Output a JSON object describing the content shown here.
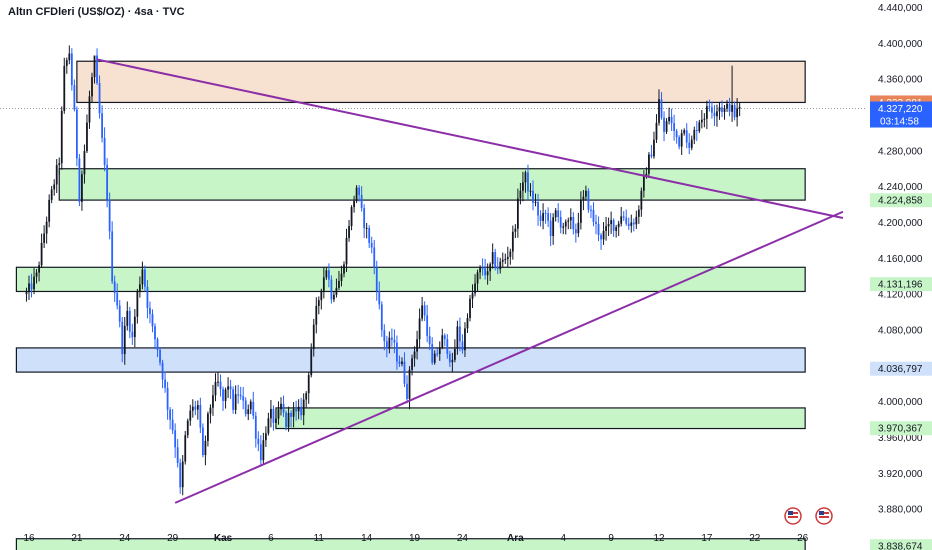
{
  "header": {
    "title": "Altın CFDleri (US$/OZ) · 4sa · TVC"
  },
  "chart_data": {
    "type": "candlestick",
    "title": "Altın CFDleri (US$/OZ) · 4sa · TVC",
    "ylim": [
      3840,
      4445
    ],
    "y_ticks": [
      {
        "v": 4440,
        "label": "4.440,000"
      },
      {
        "v": 4400,
        "label": "4.400,000"
      },
      {
        "v": 4360,
        "label": "4.360,000"
      },
      {
        "v": 4280,
        "label": "4.280,000"
      },
      {
        "v": 4240,
        "label": "4.240,000"
      },
      {
        "v": 4200,
        "label": "4.200,000"
      },
      {
        "v": 4160,
        "label": "4.160,000"
      },
      {
        "v": 4120,
        "label": "4.120,000"
      },
      {
        "v": 4080,
        "label": "4.080,000"
      },
      {
        "v": 4000,
        "label": "4.000,000"
      },
      {
        "v": 3960,
        "label": "3.960,000"
      },
      {
        "v": 3920,
        "label": "3.920,000"
      },
      {
        "v": 3880,
        "label": "3.880,000"
      }
    ],
    "x_ticks": [
      {
        "i": 0,
        "label": "16",
        "bold": false
      },
      {
        "i": 19,
        "label": "21",
        "bold": false
      },
      {
        "i": 38,
        "label": "24",
        "bold": false
      },
      {
        "i": 57,
        "label": "29",
        "bold": false
      },
      {
        "i": 77,
        "label": "Kas",
        "bold": true
      },
      {
        "i": 96,
        "label": "6",
        "bold": false
      },
      {
        "i": 115,
        "label": "11",
        "bold": false
      },
      {
        "i": 134,
        "label": "14",
        "bold": false
      },
      {
        "i": 153,
        "label": "19",
        "bold": false
      },
      {
        "i": 172,
        "label": "24",
        "bold": false
      },
      {
        "i": 193,
        "label": "Ara",
        "bold": true
      },
      {
        "i": 212,
        "label": "4",
        "bold": false
      },
      {
        "i": 231,
        "label": "9",
        "bold": false
      },
      {
        "i": 250,
        "label": "12",
        "bold": false
      },
      {
        "i": 269,
        "label": "17",
        "bold": false
      },
      {
        "i": 288,
        "label": "22",
        "bold": false
      },
      {
        "i": 307,
        "label": "26",
        "bold": false
      }
    ],
    "price_labels": [
      {
        "v": 4333.981,
        "label": "4.333,981",
        "bg": "#e8845a",
        "color": "#ffffff"
      },
      {
        "v": 4327.22,
        "label": "4.327,220",
        "sub": "03:14:58",
        "bg": "#2962ff",
        "color": "#ffffff"
      },
      {
        "v": 4224.858,
        "label": "4.224,858",
        "bg": "#c8f5c8",
        "color": "#131722"
      },
      {
        "v": 4131.196,
        "label": "4.131,196",
        "bg": "#c8f5c8",
        "color": "#131722"
      },
      {
        "v": 4036.797,
        "label": "4.036,797",
        "bg": "#cfe0fb",
        "color": "#131722"
      },
      {
        "v": 3970.367,
        "label": "3.970,367",
        "bg": "#c8f5c8",
        "color": "#131722"
      },
      {
        "v": 3838.674,
        "label": "3.838,674",
        "bg": "#c8f5c8",
        "color": "#131722"
      }
    ],
    "zones": [
      {
        "i0": 19,
        "i1": 308,
        "top": 4380,
        "bottom": 4334,
        "fill": "#f7e1d0"
      },
      {
        "i0": 12,
        "i1": 308,
        "top": 4260,
        "bottom": 4225,
        "fill": "#c8f5c8"
      },
      {
        "i0": -5,
        "i1": 308,
        "top": 4150,
        "bottom": 4123,
        "fill": "#c8f5c8"
      },
      {
        "i0": -5,
        "i1": 308,
        "top": 4060,
        "bottom": 4033,
        "fill": "#cfe0fb"
      },
      {
        "i0": 98,
        "i1": 308,
        "top": 3993,
        "bottom": 3970,
        "fill": "#c8f5c8"
      },
      {
        "i0": -5,
        "i1": 308,
        "top": 3847,
        "bottom": 3820,
        "fill": "#c8f5c8"
      }
    ],
    "trendlines": [
      {
        "i0": 27,
        "v0": 4382,
        "i1": 323,
        "v1": 4205,
        "color": "#8b2ea8"
      },
      {
        "i0": 58,
        "v0": 3887,
        "i1": 323,
        "v1": 4212,
        "color": "#8b2ea8"
      }
    ],
    "key_points": [
      [
        -1,
        4120
      ],
      [
        3,
        4140
      ],
      [
        8,
        4220
      ],
      [
        12,
        4270
      ],
      [
        14,
        4370
      ],
      [
        16,
        4390
      ],
      [
        18,
        4320
      ],
      [
        20,
        4230
      ],
      [
        22,
        4280
      ],
      [
        24,
        4340
      ],
      [
        26,
        4380
      ],
      [
        27,
        4350
      ],
      [
        29,
        4290
      ],
      [
        31,
        4230
      ],
      [
        33,
        4140
      ],
      [
        35,
        4110
      ],
      [
        37,
        4060
      ],
      [
        39,
        4100
      ],
      [
        41,
        4070
      ],
      [
        43,
        4120
      ],
      [
        45,
        4150
      ],
      [
        47,
        4110
      ],
      [
        49,
        4080
      ],
      [
        51,
        4060
      ],
      [
        53,
        4030
      ],
      [
        55,
        3995
      ],
      [
        57,
        3970
      ],
      [
        59,
        3935
      ],
      [
        60,
        3900
      ],
      [
        62,
        3960
      ],
      [
        64,
        3990
      ],
      [
        67,
        3995
      ],
      [
        69,
        3935
      ],
      [
        71,
        3980
      ],
      [
        73,
        4010
      ],
      [
        75,
        4020
      ],
      [
        77,
        4000
      ],
      [
        79,
        4020
      ],
      [
        81,
        3995
      ],
      [
        83,
        4010
      ],
      [
        86,
        3990
      ],
      [
        88,
        4000
      ],
      [
        90,
        3965
      ],
      [
        92,
        3940
      ],
      [
        94,
        3970
      ],
      [
        96,
        3985
      ],
      [
        98,
        3975
      ],
      [
        100,
        3995
      ],
      [
        102,
        3975
      ],
      [
        104,
        3990
      ],
      [
        106,
        3985
      ],
      [
        108,
        3990
      ],
      [
        110,
        4010
      ],
      [
        112,
        4060
      ],
      [
        114,
        4100
      ],
      [
        116,
        4130
      ],
      [
        118,
        4150
      ],
      [
        120,
        4120
      ],
      [
        122,
        4130
      ],
      [
        124,
        4140
      ],
      [
        127,
        4200
      ],
      [
        130,
        4240
      ],
      [
        132,
        4210
      ],
      [
        134,
        4190
      ],
      [
        136,
        4170
      ],
      [
        138,
        4130
      ],
      [
        140,
        4080
      ],
      [
        142,
        4060
      ],
      [
        144,
        4070
      ],
      [
        146,
        4050
      ],
      [
        148,
        4040
      ],
      [
        150,
        4010
      ],
      [
        152,
        4050
      ],
      [
        154,
        4070
      ],
      [
        156,
        4110
      ],
      [
        158,
        4080
      ],
      [
        160,
        4040
      ],
      [
        162,
        4055
      ],
      [
        164,
        4070
      ],
      [
        166,
        4060
      ],
      [
        168,
        4040
      ],
      [
        170,
        4080
      ],
      [
        172,
        4060
      ],
      [
        174,
        4100
      ],
      [
        176,
        4120
      ],
      [
        178,
        4140
      ],
      [
        180,
        4150
      ],
      [
        182,
        4140
      ],
      [
        184,
        4160
      ],
      [
        186,
        4150
      ],
      [
        189,
        4160
      ],
      [
        191,
        4170
      ],
      [
        193,
        4200
      ],
      [
        195,
        4240
      ],
      [
        197,
        4250
      ],
      [
        199,
        4230
      ],
      [
        201,
        4220
      ],
      [
        203,
        4200
      ],
      [
        205,
        4210
      ],
      [
        207,
        4190
      ],
      [
        209,
        4210
      ],
      [
        211,
        4200
      ],
      [
        213,
        4195
      ],
      [
        215,
        4200
      ],
      [
        217,
        4190
      ],
      [
        219,
        4220
      ],
      [
        221,
        4230
      ],
      [
        223,
        4210
      ],
      [
        225,
        4195
      ],
      [
        227,
        4185
      ],
      [
        229,
        4190
      ],
      [
        231,
        4200
      ],
      [
        233,
        4195
      ],
      [
        235,
        4210
      ],
      [
        237,
        4200
      ],
      [
        239,
        4200
      ],
      [
        241,
        4205
      ],
      [
        243,
        4230
      ],
      [
        245,
        4260
      ],
      [
        247,
        4280
      ],
      [
        249,
        4310
      ],
      [
        250,
        4335
      ],
      [
        252,
        4300
      ],
      [
        254,
        4320
      ],
      [
        256,
        4300
      ],
      [
        258,
        4290
      ],
      [
        260,
        4310
      ],
      [
        262,
        4280
      ],
      [
        264,
        4300
      ],
      [
        266,
        4315
      ],
      [
        268,
        4320
      ],
      [
        270,
        4330
      ],
      [
        272,
        4325
      ],
      [
        274,
        4330
      ],
      [
        276,
        4325
      ],
      [
        278,
        4330
      ],
      [
        280,
        4320
      ],
      [
        282,
        4327
      ]
    ],
    "upper_spikes": [
      [
        26,
        4382
      ],
      [
        279,
        4375
      ]
    ]
  }
}
